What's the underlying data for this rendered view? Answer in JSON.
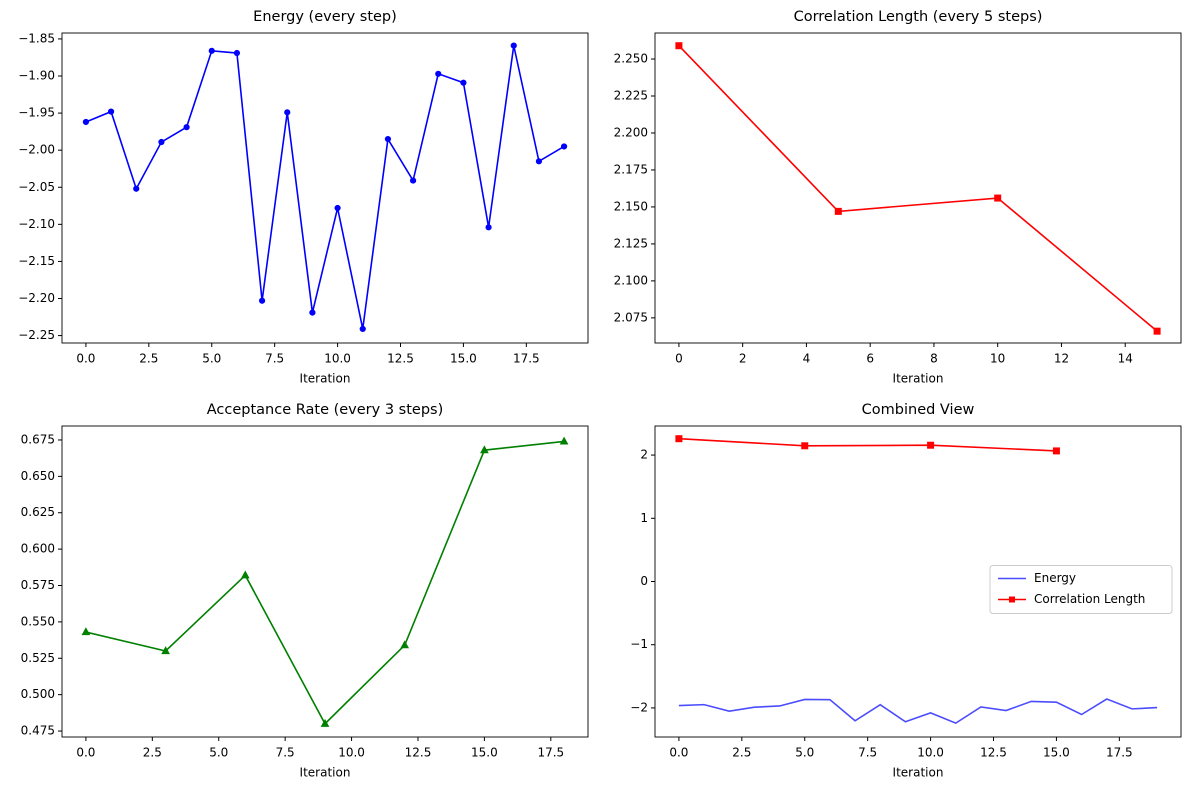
{
  "chart_data": [
    {
      "type": "line",
      "title": "Energy (every step)",
      "xlabel": "Iteration",
      "color": "#0000ff",
      "marker": "circle",
      "x": [
        0,
        1,
        2,
        3,
        4,
        5,
        6,
        7,
        8,
        9,
        10,
        11,
        12,
        13,
        14,
        15,
        16,
        17,
        18,
        19
      ],
      "values": [
        -1.962,
        -1.948,
        -2.052,
        -1.989,
        -1.969,
        -1.866,
        -1.869,
        -2.203,
        -1.949,
        -2.219,
        -2.078,
        -2.241,
        -1.985,
        -2.041,
        -1.897,
        -1.909,
        -2.104,
        -1.859,
        -2.015,
        -1.995
      ],
      "xlim": [
        -0.95,
        19.95
      ],
      "ylim": [
        -2.26,
        -1.842
      ],
      "xticks": [
        {
          "value": 0,
          "label": "0.0"
        },
        {
          "value": 2.5,
          "label": "2.5"
        },
        {
          "value": 5,
          "label": "5.0"
        },
        {
          "value": 7.5,
          "label": "7.5"
        },
        {
          "value": 10,
          "label": "10.0"
        },
        {
          "value": 12.5,
          "label": "12.5"
        },
        {
          "value": 15,
          "label": "15.0"
        },
        {
          "value": 17.5,
          "label": "17.5"
        }
      ],
      "yticks": [
        {
          "value": -2.25,
          "label": "−2.25"
        },
        {
          "value": -2.2,
          "label": "−2.20"
        },
        {
          "value": -2.15,
          "label": "−2.15"
        },
        {
          "value": -2.1,
          "label": "−2.10"
        },
        {
          "value": -2.05,
          "label": "−2.05"
        },
        {
          "value": -2.0,
          "label": "−2.00"
        },
        {
          "value": -1.95,
          "label": "−1.95"
        },
        {
          "value": -1.9,
          "label": "−1.90"
        },
        {
          "value": -1.85,
          "label": "−1.85"
        }
      ]
    },
    {
      "type": "line",
      "title": "Correlation Length (every 5 steps)",
      "xlabel": "Iteration",
      "color": "#ff0000",
      "marker": "square",
      "x": [
        0,
        5,
        10,
        15
      ],
      "values": [
        2.259,
        2.147,
        2.156,
        2.066
      ],
      "xlim": [
        -0.75,
        15.75
      ],
      "ylim": [
        2.058,
        2.2676
      ],
      "xticks": [
        0,
        2,
        4,
        6,
        8,
        10,
        12,
        14
      ],
      "yticks": [
        {
          "value": 2.075,
          "label": "2.075"
        },
        {
          "value": 2.1,
          "label": "2.100"
        },
        {
          "value": 2.125,
          "label": "2.125"
        },
        {
          "value": 2.15,
          "label": "2.150"
        },
        {
          "value": 2.175,
          "label": "2.175"
        },
        {
          "value": 2.2,
          "label": "2.200"
        },
        {
          "value": 2.225,
          "label": "2.225"
        },
        {
          "value": 2.25,
          "label": "2.250"
        }
      ]
    },
    {
      "type": "line",
      "title": "Acceptance Rate (every 3 steps)",
      "xlabel": "Iteration",
      "color": "#008000",
      "marker": "triangle",
      "x": [
        0,
        3,
        6,
        9,
        12,
        15,
        18
      ],
      "values": [
        0.543,
        0.53,
        0.582,
        0.48,
        0.534,
        0.668,
        0.674
      ],
      "xlim": [
        -0.9,
        18.9
      ],
      "ylim": [
        0.4709,
        0.6846
      ],
      "xticks": [
        {
          "value": 0,
          "label": "0.0"
        },
        {
          "value": 2.5,
          "label": "2.5"
        },
        {
          "value": 5,
          "label": "5.0"
        },
        {
          "value": 7.5,
          "label": "7.5"
        },
        {
          "value": 10,
          "label": "10.0"
        },
        {
          "value": 12.5,
          "label": "12.5"
        },
        {
          "value": 15,
          "label": "15.0"
        },
        {
          "value": 17.5,
          "label": "17.5"
        }
      ],
      "yticks": [
        {
          "value": 0.475,
          "label": "0.475"
        },
        {
          "value": 0.5,
          "label": "0.500"
        },
        {
          "value": 0.525,
          "label": "0.525"
        },
        {
          "value": 0.55,
          "label": "0.550"
        },
        {
          "value": 0.575,
          "label": "0.575"
        },
        {
          "value": 0.6,
          "label": "0.600"
        },
        {
          "value": 0.625,
          "label": "0.625"
        },
        {
          "value": 0.65,
          "label": "0.650"
        },
        {
          "value": 0.675,
          "label": "0.675"
        }
      ]
    },
    {
      "type": "line",
      "title": "Combined View",
      "xlabel": "Iteration",
      "legend": "center right",
      "series": [
        {
          "name": "Energy",
          "color": "#0000ff",
          "alpha": 0.7,
          "marker": "none",
          "x": [
            0,
            1,
            2,
            3,
            4,
            5,
            6,
            7,
            8,
            9,
            10,
            11,
            12,
            13,
            14,
            15,
            16,
            17,
            18,
            19
          ],
          "values": [
            -1.962,
            -1.948,
            -2.052,
            -1.989,
            -1.969,
            -1.866,
            -1.869,
            -2.203,
            -1.949,
            -2.219,
            -2.078,
            -2.241,
            -1.985,
            -2.041,
            -1.897,
            -1.909,
            -2.104,
            -1.859,
            -2.015,
            -1.995
          ]
        },
        {
          "name": "Correlation Length",
          "color": "#ff0000",
          "alpha": 1,
          "marker": "square",
          "x": [
            0,
            5,
            10,
            15
          ],
          "values": [
            2.259,
            2.147,
            2.156,
            2.066
          ]
        }
      ],
      "xlim": [
        -0.95,
        19.95
      ],
      "ylim": [
        -2.46,
        2.46
      ],
      "xticks": [
        {
          "value": 0,
          "label": "0.0"
        },
        {
          "value": 2.5,
          "label": "2.5"
        },
        {
          "value": 5,
          "label": "5.0"
        },
        {
          "value": 7.5,
          "label": "7.5"
        },
        {
          "value": 10,
          "label": "10.0"
        },
        {
          "value": 12.5,
          "label": "12.5"
        },
        {
          "value": 15,
          "label": "15.0"
        },
        {
          "value": 17.5,
          "label": "17.5"
        }
      ],
      "yticks": [
        {
          "value": -2,
          "label": "−2"
        },
        {
          "value": -1,
          "label": "−1"
        },
        0,
        1,
        2
      ]
    }
  ]
}
